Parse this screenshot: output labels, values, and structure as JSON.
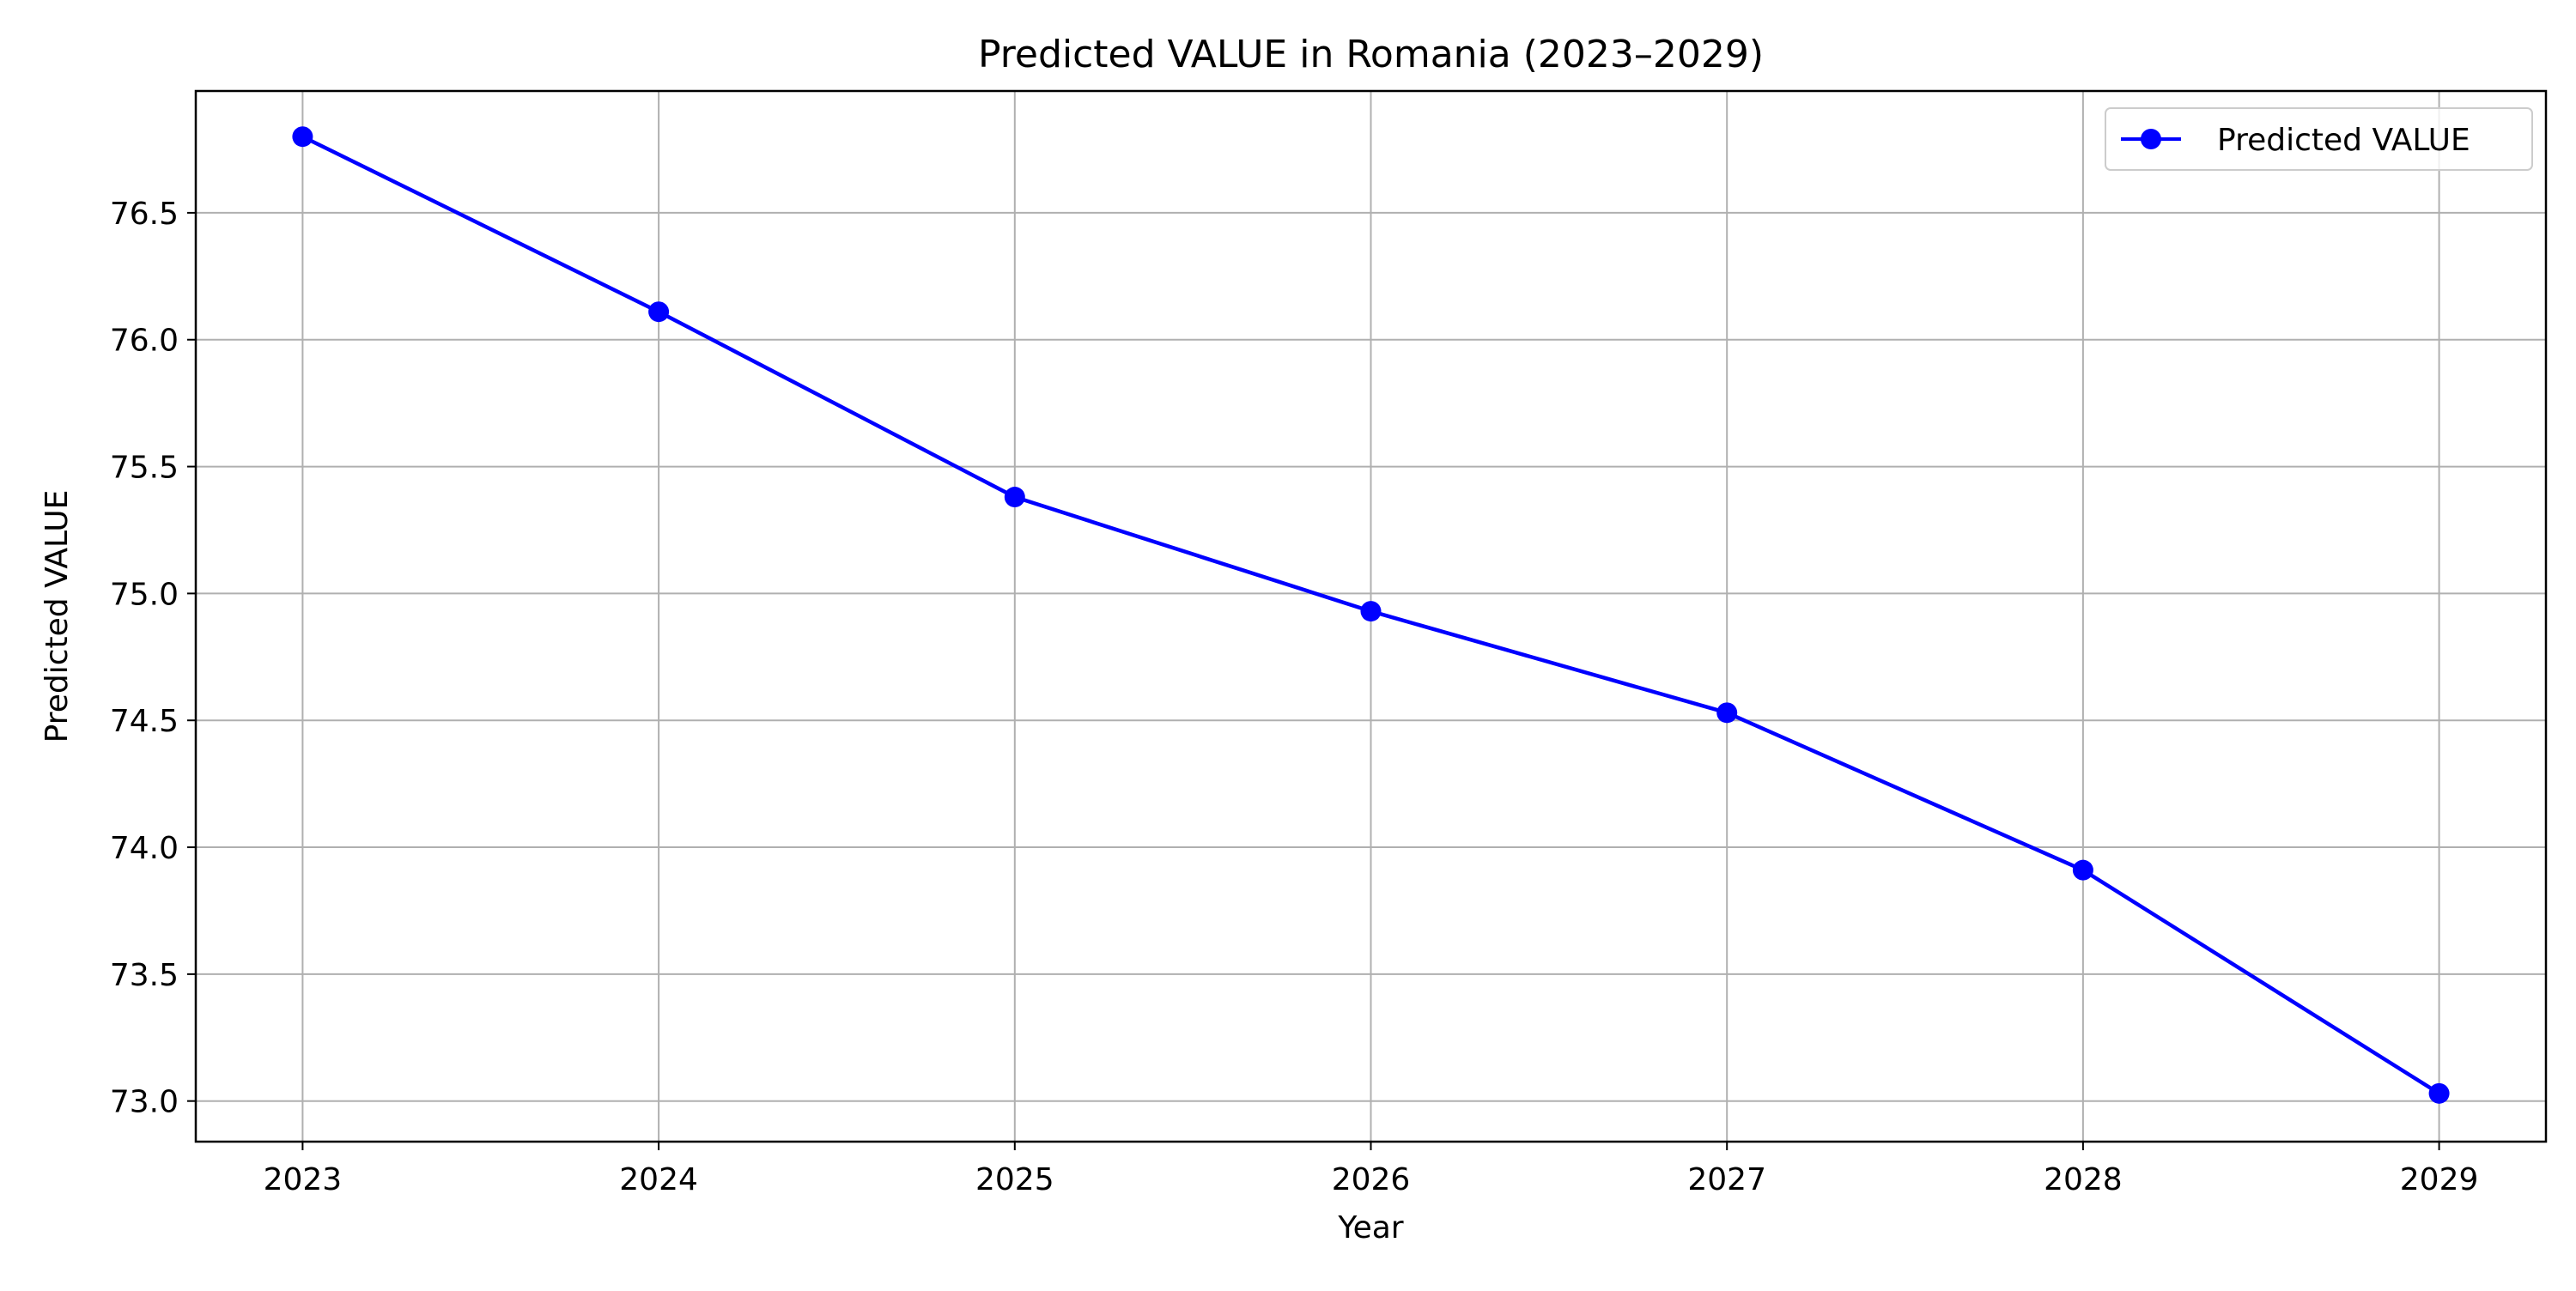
{
  "chart_data": {
    "type": "line",
    "title": "Predicted VALUE in Romania (2023–2029)",
    "xlabel": "Year",
    "ylabel": "Predicted VALUE",
    "x": [
      2023,
      2024,
      2025,
      2026,
      2027,
      2028,
      2029
    ],
    "x_tick_labels": [
      "2023",
      "2024",
      "2025",
      "2026",
      "2027",
      "2028",
      "2029"
    ],
    "y_ticks": [
      73.0,
      73.5,
      74.0,
      74.5,
      75.0,
      75.5,
      76.0,
      76.5
    ],
    "y_tick_labels": [
      "73.0",
      "73.5",
      "74.0",
      "74.5",
      "75.0",
      "75.5",
      "76.0",
      "76.5"
    ],
    "xlim": [
      2022.7,
      2029.3
    ],
    "ylim": [
      72.84,
      76.98
    ],
    "grid": true,
    "legend_position": "upper right",
    "series": [
      {
        "name": "Predicted VALUE",
        "color": "#0000ff",
        "marker": "circle",
        "values": [
          76.8,
          76.11,
          75.38,
          74.93,
          74.53,
          73.91,
          73.03
        ]
      }
    ]
  }
}
